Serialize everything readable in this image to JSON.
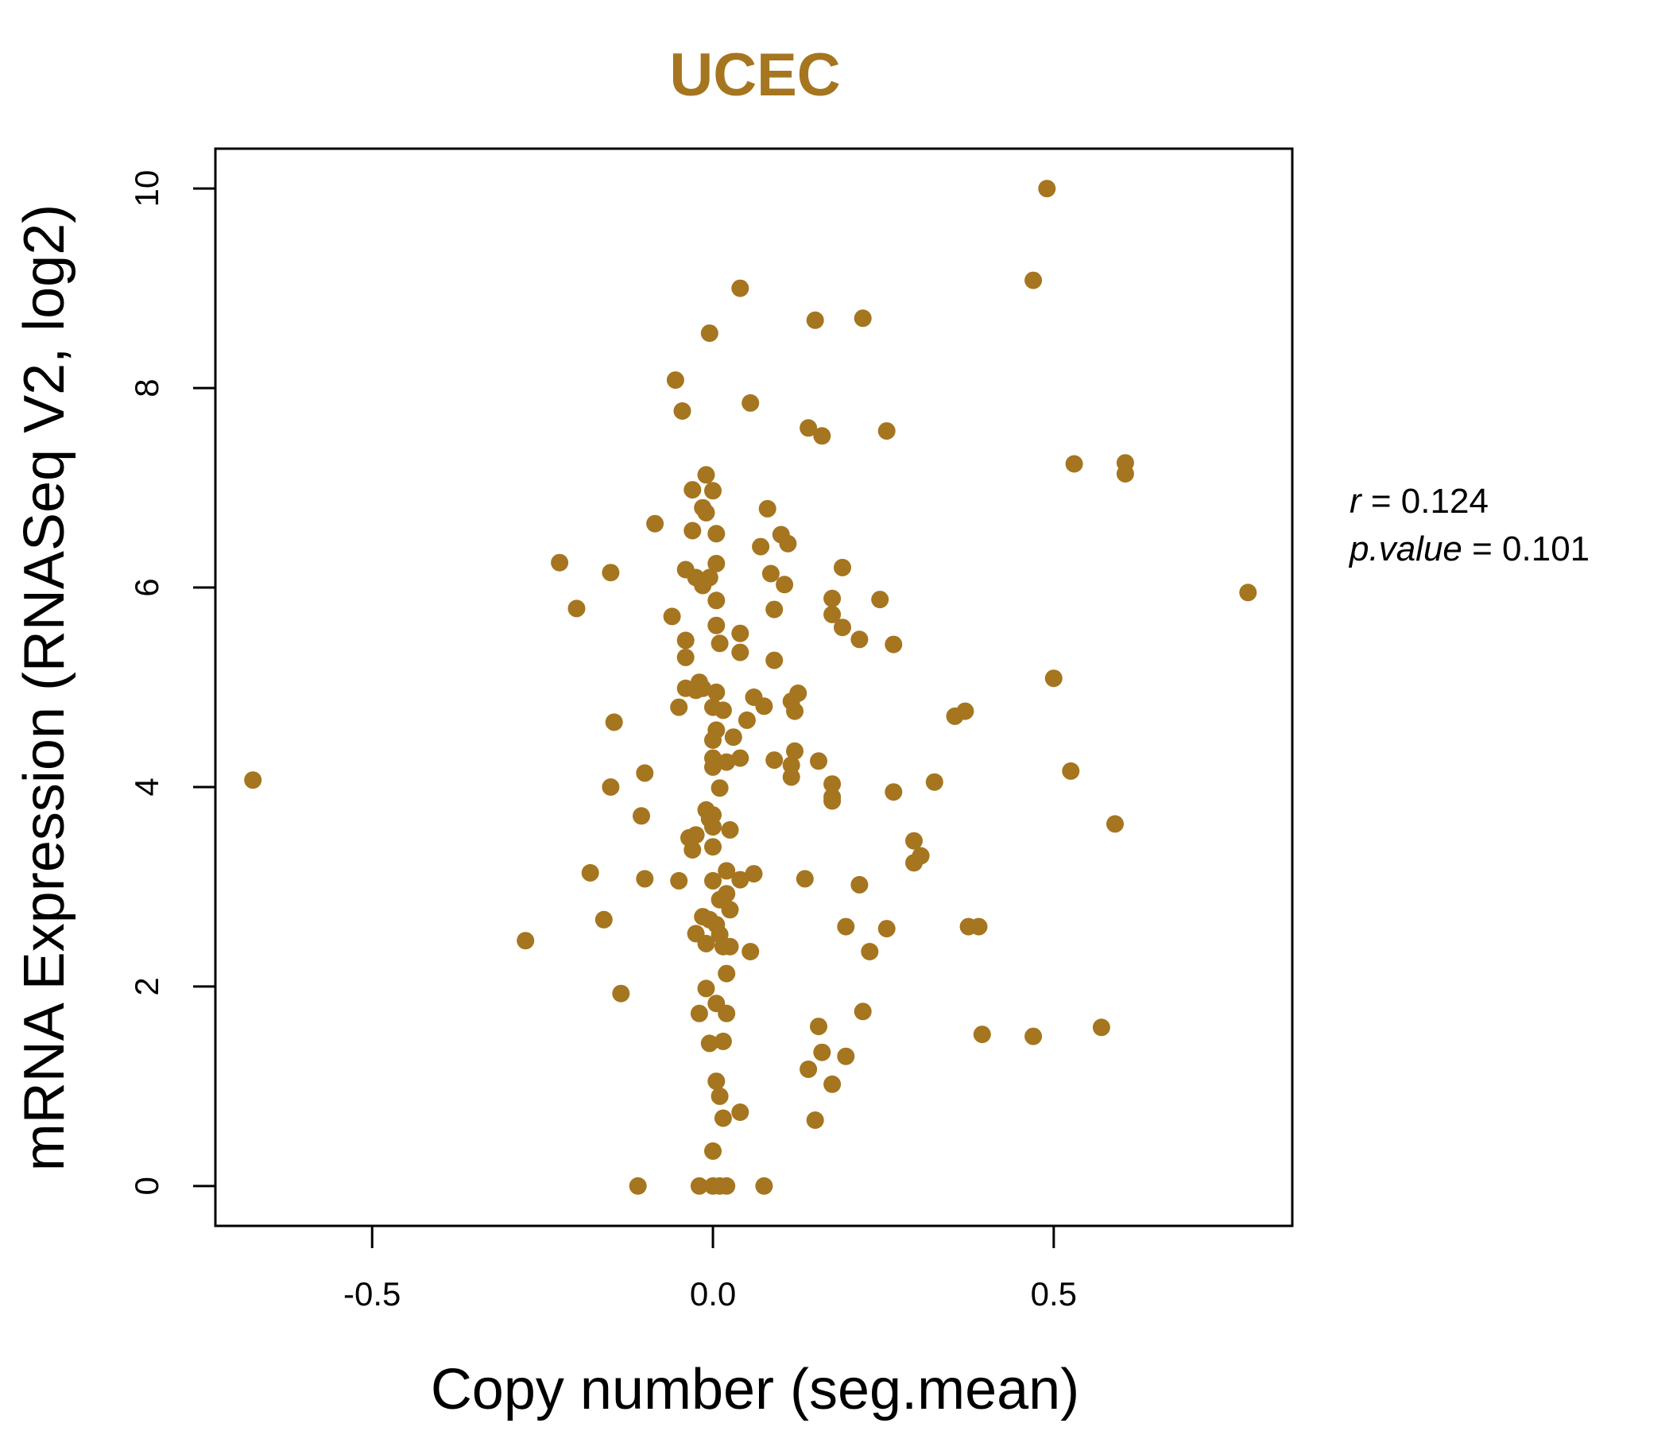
{
  "colors": {
    "accent": "#A5751F",
    "axis": "#000000"
  },
  "stats": {
    "r_name": "r",
    "r_eq": " = 0.124",
    "p_name": "p.value",
    "p_eq": " = 0.101"
  },
  "chart_data": {
    "type": "scatter",
    "title": "UCEC",
    "xlabel": "Copy number (seg.mean)",
    "ylabel": "mRNA Expression (RNASeq V2, log2)",
    "xlim": [
      -0.73,
      0.85
    ],
    "ylim": [
      -0.4,
      10.4
    ],
    "xticks": [
      -0.5,
      0.0,
      0.5
    ],
    "xtick_labels": [
      "-0.5",
      "0.0",
      "0.5"
    ],
    "yticks": [
      0,
      2,
      4,
      6,
      8,
      10
    ],
    "ytick_labels": [
      "0",
      "2",
      "4",
      "6",
      "8",
      "10"
    ],
    "grid": false,
    "points": [
      {
        "x": 0.49,
        "y": 10.0
      },
      {
        "x": 0.47,
        "y": 9.08
      },
      {
        "x": 0.04,
        "y": 9.0
      },
      {
        "x": 0.22,
        "y": 8.7
      },
      {
        "x": 0.15,
        "y": 8.68
      },
      {
        "x": -0.005,
        "y": 8.55
      },
      {
        "x": -0.055,
        "y": 8.08
      },
      {
        "x": 0.055,
        "y": 7.85
      },
      {
        "x": -0.045,
        "y": 7.77
      },
      {
        "x": 0.14,
        "y": 7.6
      },
      {
        "x": 0.255,
        "y": 7.57
      },
      {
        "x": 0.16,
        "y": 7.52
      },
      {
        "x": 0.53,
        "y": 7.24
      },
      {
        "x": 0.605,
        "y": 7.25
      },
      {
        "x": 0.605,
        "y": 7.14
      },
      {
        "x": -0.01,
        "y": 7.13
      },
      {
        "x": -0.03,
        "y": 6.98
      },
      {
        "x": 0.0,
        "y": 6.97
      },
      {
        "x": -0.015,
        "y": 6.8
      },
      {
        "x": -0.01,
        "y": 6.75
      },
      {
        "x": 0.08,
        "y": 6.79
      },
      {
        "x": -0.085,
        "y": 6.64
      },
      {
        "x": -0.03,
        "y": 6.57
      },
      {
        "x": 0.005,
        "y": 6.54
      },
      {
        "x": 0.1,
        "y": 6.53
      },
      {
        "x": 0.11,
        "y": 6.44
      },
      {
        "x": 0.07,
        "y": 6.41
      },
      {
        "x": -0.225,
        "y": 6.25
      },
      {
        "x": 0.005,
        "y": 6.24
      },
      {
        "x": -0.04,
        "y": 6.18
      },
      {
        "x": 0.19,
        "y": 6.2
      },
      {
        "x": -0.15,
        "y": 6.15
      },
      {
        "x": 0.085,
        "y": 6.14
      },
      {
        "x": -0.025,
        "y": 6.1
      },
      {
        "x": -0.005,
        "y": 6.1
      },
      {
        "x": -0.015,
        "y": 6.02
      },
      {
        "x": 0.105,
        "y": 6.03
      },
      {
        "x": 0.785,
        "y": 5.95
      },
      {
        "x": 0.005,
        "y": 5.87
      },
      {
        "x": 0.175,
        "y": 5.89
      },
      {
        "x": 0.245,
        "y": 5.88
      },
      {
        "x": -0.2,
        "y": 5.79
      },
      {
        "x": 0.09,
        "y": 5.78
      },
      {
        "x": -0.06,
        "y": 5.71
      },
      {
        "x": 0.175,
        "y": 5.73
      },
      {
        "x": 0.005,
        "y": 5.62
      },
      {
        "x": 0.19,
        "y": 5.6
      },
      {
        "x": 0.04,
        "y": 5.54
      },
      {
        "x": 0.215,
        "y": 5.48
      },
      {
        "x": -0.04,
        "y": 5.47
      },
      {
        "x": 0.01,
        "y": 5.44
      },
      {
        "x": 0.265,
        "y": 5.43
      },
      {
        "x": 0.04,
        "y": 5.35
      },
      {
        "x": -0.04,
        "y": 5.3
      },
      {
        "x": 0.09,
        "y": 5.27
      },
      {
        "x": 0.5,
        "y": 5.09
      },
      {
        "x": -0.02,
        "y": 5.05
      },
      {
        "x": -0.04,
        "y": 4.99
      },
      {
        "x": -0.025,
        "y": 4.97
      },
      {
        "x": -0.015,
        "y": 4.99
      },
      {
        "x": 0.005,
        "y": 4.95
      },
      {
        "x": 0.125,
        "y": 4.94
      },
      {
        "x": 0.06,
        "y": 4.9
      },
      {
        "x": 0.115,
        "y": 4.86
      },
      {
        "x": -0.05,
        "y": 4.8
      },
      {
        "x": 0.0,
        "y": 4.8
      },
      {
        "x": 0.075,
        "y": 4.81
      },
      {
        "x": 0.015,
        "y": 4.77
      },
      {
        "x": 0.12,
        "y": 4.76
      },
      {
        "x": 0.37,
        "y": 4.76
      },
      {
        "x": 0.355,
        "y": 4.71
      },
      {
        "x": 0.05,
        "y": 4.67
      },
      {
        "x": -0.145,
        "y": 4.65
      },
      {
        "x": 0.005,
        "y": 4.57
      },
      {
        "x": 0.03,
        "y": 4.5
      },
      {
        "x": 0.0,
        "y": 4.47
      },
      {
        "x": 0.12,
        "y": 4.36
      },
      {
        "x": 0.0,
        "y": 4.29
      },
      {
        "x": 0.04,
        "y": 4.29
      },
      {
        "x": 0.09,
        "y": 4.27
      },
      {
        "x": 0.02,
        "y": 4.25
      },
      {
        "x": 0.155,
        "y": 4.26
      },
      {
        "x": 0.0,
        "y": 4.2
      },
      {
        "x": 0.115,
        "y": 4.22
      },
      {
        "x": 0.525,
        "y": 4.16
      },
      {
        "x": -0.1,
        "y": 4.14
      },
      {
        "x": 0.115,
        "y": 4.1
      },
      {
        "x": -0.675,
        "y": 4.07
      },
      {
        "x": 0.325,
        "y": 4.05
      },
      {
        "x": 0.175,
        "y": 4.03
      },
      {
        "x": -0.15,
        "y": 4.0
      },
      {
        "x": 0.01,
        "y": 3.99
      },
      {
        "x": 0.265,
        "y": 3.95
      },
      {
        "x": 0.175,
        "y": 3.9
      },
      {
        "x": 0.175,
        "y": 3.86
      },
      {
        "x": -0.01,
        "y": 3.77
      },
      {
        "x": 0.0,
        "y": 3.72
      },
      {
        "x": -0.105,
        "y": 3.71
      },
      {
        "x": -0.005,
        "y": 3.68
      },
      {
        "x": 0.59,
        "y": 3.63
      },
      {
        "x": 0.0,
        "y": 3.6
      },
      {
        "x": 0.025,
        "y": 3.57
      },
      {
        "x": -0.025,
        "y": 3.52
      },
      {
        "x": -0.035,
        "y": 3.49
      },
      {
        "x": 0.295,
        "y": 3.46
      },
      {
        "x": 0.0,
        "y": 3.4
      },
      {
        "x": -0.03,
        "y": 3.37
      },
      {
        "x": 0.305,
        "y": 3.31
      },
      {
        "x": 0.295,
        "y": 3.24
      },
      {
        "x": 0.02,
        "y": 3.16
      },
      {
        "x": -0.18,
        "y": 3.14
      },
      {
        "x": 0.06,
        "y": 3.13
      },
      {
        "x": -0.1,
        "y": 3.08
      },
      {
        "x": 0.135,
        "y": 3.08
      },
      {
        "x": 0.0,
        "y": 3.06
      },
      {
        "x": 0.04,
        "y": 3.07
      },
      {
        "x": -0.05,
        "y": 3.06
      },
      {
        "x": 0.215,
        "y": 3.02
      },
      {
        "x": 0.02,
        "y": 2.93
      },
      {
        "x": 0.01,
        "y": 2.87
      },
      {
        "x": 0.025,
        "y": 2.77
      },
      {
        "x": -0.015,
        "y": 2.7
      },
      {
        "x": -0.005,
        "y": 2.67
      },
      {
        "x": -0.16,
        "y": 2.67
      },
      {
        "x": 0.005,
        "y": 2.62
      },
      {
        "x": 0.195,
        "y": 2.6
      },
      {
        "x": 0.255,
        "y": 2.58
      },
      {
        "x": 0.375,
        "y": 2.6
      },
      {
        "x": 0.39,
        "y": 2.6
      },
      {
        "x": -0.025,
        "y": 2.53
      },
      {
        "x": 0.01,
        "y": 2.52
      },
      {
        "x": -0.275,
        "y": 2.46
      },
      {
        "x": -0.01,
        "y": 2.43
      },
      {
        "x": 0.015,
        "y": 2.4
      },
      {
        "x": 0.025,
        "y": 2.4
      },
      {
        "x": 0.055,
        "y": 2.35
      },
      {
        "x": 0.23,
        "y": 2.35
      },
      {
        "x": 0.02,
        "y": 2.13
      },
      {
        "x": -0.01,
        "y": 1.98
      },
      {
        "x": -0.135,
        "y": 1.93
      },
      {
        "x": 0.005,
        "y": 1.83
      },
      {
        "x": 0.22,
        "y": 1.75
      },
      {
        "x": -0.02,
        "y": 1.73
      },
      {
        "x": 0.02,
        "y": 1.73
      },
      {
        "x": 0.155,
        "y": 1.6
      },
      {
        "x": 0.57,
        "y": 1.59
      },
      {
        "x": 0.395,
        "y": 1.52
      },
      {
        "x": 0.47,
        "y": 1.5
      },
      {
        "x": 0.015,
        "y": 1.45
      },
      {
        "x": -0.005,
        "y": 1.43
      },
      {
        "x": 0.16,
        "y": 1.34
      },
      {
        "x": 0.195,
        "y": 1.3
      },
      {
        "x": 0.14,
        "y": 1.17
      },
      {
        "x": 0.005,
        "y": 1.05
      },
      {
        "x": 0.175,
        "y": 1.02
      },
      {
        "x": 0.01,
        "y": 0.9
      },
      {
        "x": 0.04,
        "y": 0.74
      },
      {
        "x": 0.015,
        "y": 0.68
      },
      {
        "x": 0.15,
        "y": 0.66
      },
      {
        "x": 0.0,
        "y": 0.35
      },
      {
        "x": -0.11,
        "y": 0.0
      },
      {
        "x": -0.02,
        "y": 0.0
      },
      {
        "x": 0.0,
        "y": 0.0
      },
      {
        "x": 0.01,
        "y": 0.0
      },
      {
        "x": 0.02,
        "y": 0.0
      },
      {
        "x": 0.075,
        "y": 0.0
      }
    ]
  }
}
